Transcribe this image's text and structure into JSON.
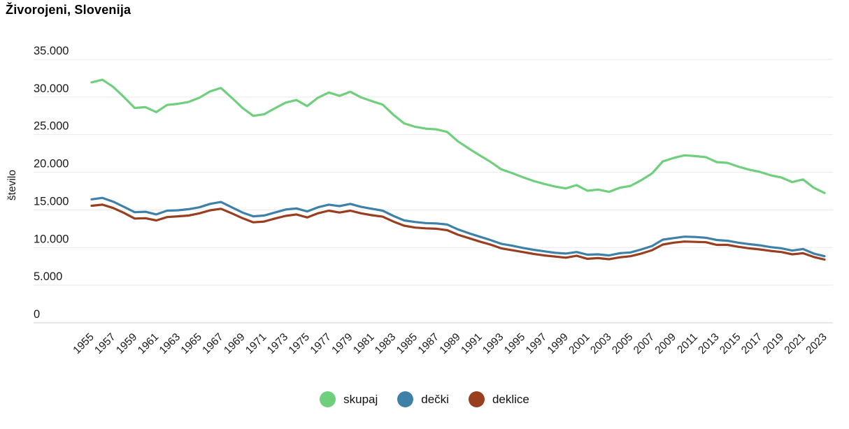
{
  "chart_data": {
    "type": "line",
    "title": "Živorojeni, Slovenija",
    "ylabel": "število",
    "xlabel": "",
    "ylim": [
      0,
      35000
    ],
    "grid": "horizontal",
    "legend_position": "bottom-center",
    "y_tick_values": [
      35000,
      30000,
      25000,
      20000,
      15000,
      10000,
      5000,
      0
    ],
    "y_tick_labels": [
      "35.000",
      "30.000",
      "25.000",
      "20.000",
      "15.000",
      "10.000",
      "5.000",
      "0"
    ],
    "x_tick_labels": [
      "1955",
      "1957",
      "1959",
      "1961",
      "1963",
      "1965",
      "1967",
      "1969",
      "1971",
      "1973",
      "1975",
      "1977",
      "1979",
      "1981",
      "1983",
      "1985",
      "1987",
      "1989",
      "1991",
      "1993",
      "1995",
      "1997",
      "1999",
      "2001",
      "2003",
      "2005",
      "2007",
      "2009",
      "2011",
      "2013",
      "2015",
      "2017",
      "2019",
      "2021",
      "2023"
    ],
    "categories": [
      1955,
      1956,
      1957,
      1958,
      1959,
      1960,
      1961,
      1962,
      1963,
      1964,
      1965,
      1966,
      1967,
      1968,
      1969,
      1970,
      1971,
      1972,
      1973,
      1974,
      1975,
      1976,
      1977,
      1978,
      1979,
      1980,
      1981,
      1982,
      1983,
      1984,
      1985,
      1986,
      1987,
      1988,
      1989,
      1990,
      1991,
      1992,
      1993,
      1994,
      1995,
      1996,
      1997,
      1998,
      1999,
      2000,
      2001,
      2002,
      2003,
      2004,
      2005,
      2006,
      2007,
      2008,
      2009,
      2010,
      2011,
      2012,
      2013,
      2014,
      2015,
      2016,
      2017,
      2018,
      2019,
      2020,
      2021,
      2022,
      2023
    ],
    "series": [
      {
        "name": "skupaj",
        "color": "#6FCF7C",
        "values": [
          31950,
          32300,
          31350,
          30000,
          28550,
          28650,
          28000,
          28950,
          29100,
          29350,
          29900,
          30750,
          31200,
          29900,
          28550,
          27500,
          27700,
          28500,
          29250,
          29600,
          28800,
          29900,
          30600,
          30150,
          30700,
          29950,
          29450,
          29000,
          27650,
          26500,
          26050,
          25800,
          25700,
          25350,
          24100,
          23150,
          22250,
          21400,
          20400,
          19900,
          19350,
          18850,
          18450,
          18100,
          17850,
          18300,
          17550,
          17700,
          17400,
          17950,
          18200,
          18950,
          19850,
          21450,
          21900,
          22250,
          22150,
          22000,
          21350,
          21250,
          20750,
          20350,
          20050,
          19600,
          19300,
          18700,
          19050,
          17950,
          17250
        ]
      },
      {
        "name": "dečki",
        "color": "#3F80A9",
        "values": [
          16400,
          16600,
          16100,
          15400,
          14700,
          14750,
          14400,
          14900,
          14950,
          15100,
          15350,
          15800,
          16050,
          15350,
          14650,
          14150,
          14250,
          14650,
          15050,
          15200,
          14800,
          15350,
          15700,
          15500,
          15800,
          15400,
          15150,
          14900,
          14200,
          13600,
          13400,
          13250,
          13200,
          13050,
          12400,
          11900,
          11450,
          11000,
          10500,
          10250,
          9950,
          9700,
          9500,
          9300,
          9200,
          9400,
          9050,
          9100,
          8950,
          9250,
          9350,
          9750,
          10200,
          11050,
          11250,
          11450,
          11400,
          11300,
          11000,
          10900,
          10650,
          10450,
          10300,
          10050,
          9900,
          9600,
          9800,
          9200,
          8850
        ]
      },
      {
        "name": "deklice",
        "color": "#9A3E20",
        "values": [
          15550,
          15700,
          15250,
          14600,
          13850,
          13900,
          13600,
          14050,
          14150,
          14250,
          14550,
          14950,
          15150,
          14550,
          13900,
          13350,
          13450,
          13850,
          14200,
          14400,
          14000,
          14550,
          14900,
          14650,
          14900,
          14550,
          14300,
          14100,
          13450,
          12900,
          12650,
          12550,
          12500,
          12300,
          11700,
          11250,
          10800,
          10400,
          9900,
          9650,
          9400,
          9150,
          8950,
          8800,
          8650,
          8900,
          8500,
          8600,
          8450,
          8700,
          8850,
          9200,
          9650,
          10400,
          10650,
          10800,
          10750,
          10700,
          10350,
          10350,
          10100,
          9900,
          9750,
          9550,
          9400,
          9100,
          9250,
          8750,
          8400
        ]
      }
    ],
    "colors": {
      "gridline": "#e9e9e9",
      "zero_line": "#cfcfcf",
      "tick_text": "#1a1a1a"
    }
  }
}
